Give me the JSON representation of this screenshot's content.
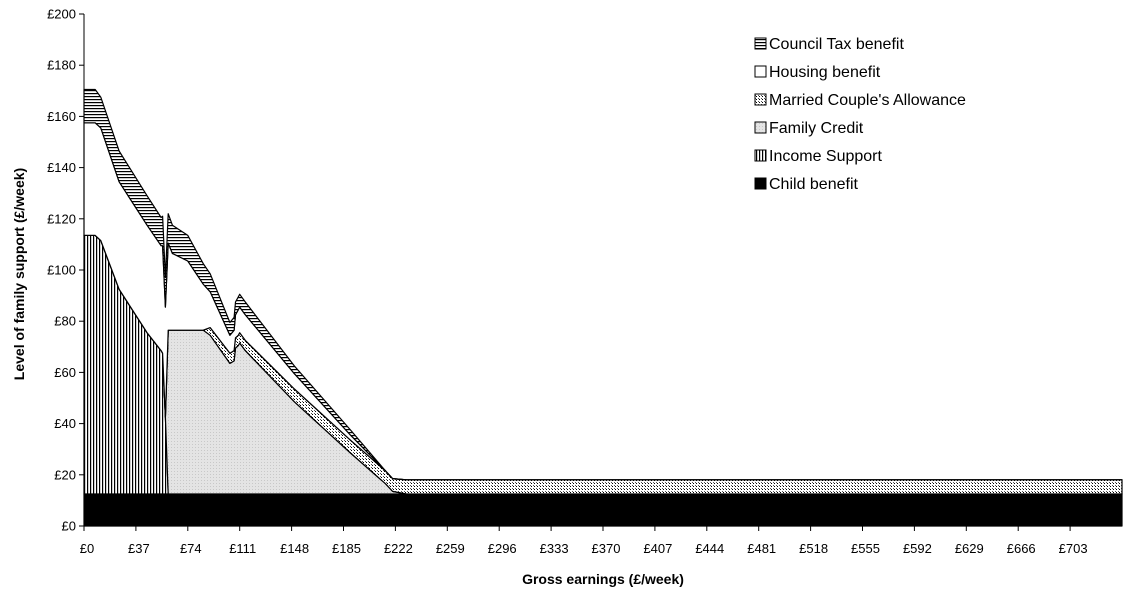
{
  "chart_data": {
    "type": "area",
    "stacked": true,
    "xlabel": "Gross earnings (£/week)",
    "ylabel": "Level of family support (£/week)",
    "xlim": [
      0,
      740
    ],
    "ylim": [
      0,
      200
    ],
    "x_ticks": [
      0,
      37,
      74,
      111,
      148,
      185,
      222,
      259,
      296,
      333,
      370,
      407,
      444,
      481,
      518,
      555,
      592,
      629,
      666,
      703
    ],
    "x_tick_labels": [
      "£0",
      "£37",
      "£74",
      "£111",
      "£148",
      "£185",
      "£222",
      "£259",
      "£296",
      "£333",
      "£370",
      "£407",
      "£444",
      "£481",
      "£518",
      "£555",
      "£592",
      "£629",
      "£666",
      "£703"
    ],
    "y_ticks": [
      0,
      20,
      40,
      60,
      80,
      100,
      120,
      140,
      160,
      180,
      200
    ],
    "y_tick_labels": [
      "£0",
      "£20",
      "£40",
      "£60",
      "£80",
      "£100",
      "£120",
      "£140",
      "£160",
      "£180",
      "£200"
    ],
    "grid": false,
    "legend_position": "top-right",
    "x": [
      0,
      8,
      12,
      25,
      45,
      55,
      56,
      58,
      60,
      63,
      74,
      85,
      90,
      104,
      107,
      108,
      110,
      111,
      115,
      150,
      190,
      215,
      220,
      230,
      235,
      740
    ],
    "series": [
      {
        "name": "Child benefit",
        "pattern": "solid-black",
        "values": [
          12.5,
          12.5,
          12.5,
          12.5,
          12.5,
          12.5,
          12.5,
          12.5,
          12.5,
          12.5,
          12.5,
          12.5,
          12.5,
          12.5,
          12.5,
          12.5,
          12.5,
          12.5,
          12.5,
          12.5,
          12.5,
          12.5,
          12.5,
          12.5,
          12.5,
          12.5
        ]
      },
      {
        "name": "Income Support",
        "pattern": "vertical-lines",
        "values": [
          101,
          101,
          99,
          80,
          63,
          56,
          55,
          30,
          0,
          0,
          0,
          0,
          0,
          0,
          0,
          0,
          0,
          0,
          0,
          0,
          0,
          0,
          0,
          0,
          0,
          0
        ]
      },
      {
        "name": "Family Credit",
        "pattern": "light-stipple",
        "values": [
          0,
          0,
          0,
          0,
          0,
          0,
          0,
          0,
          64,
          64,
          64,
          64,
          62,
          51,
          52,
          57,
          58,
          59,
          56,
          36,
          16,
          4,
          1,
          0,
          0,
          0
        ]
      },
      {
        "name": "Married Couple's Allowance",
        "pattern": "crosshatch",
        "values": [
          0,
          0,
          0,
          0,
          0,
          0,
          0,
          0,
          0,
          0,
          0,
          0,
          3,
          4,
          4,
          4,
          4,
          4,
          4,
          5,
          5,
          5,
          5,
          5.5,
          5.5,
          5.5
        ]
      },
      {
        "name": "Housing benefit",
        "pattern": "white",
        "values": [
          44,
          44,
          44,
          42,
          42,
          41,
          42,
          43,
          34,
          30,
          27,
          18,
          14,
          7,
          8,
          9,
          10,
          10,
          10,
          6,
          2,
          0,
          0,
          0,
          0,
          0
        ]
      },
      {
        "name": "Council Tax benefit",
        "pattern": "horizontal-lines",
        "values": [
          13,
          13,
          12,
          12,
          11.5,
          11,
          11.5,
          11.5,
          11.5,
          11,
          10,
          8,
          7,
          5,
          5,
          5,
          5,
          5,
          5,
          3,
          2,
          0,
          0,
          0,
          0,
          0
        ]
      }
    ],
    "legend": [
      "Council Tax benefit",
      "Housing benefit",
      "Married Couple's Allowance",
      "Family Credit",
      "Income Support",
      "Child benefit"
    ]
  }
}
